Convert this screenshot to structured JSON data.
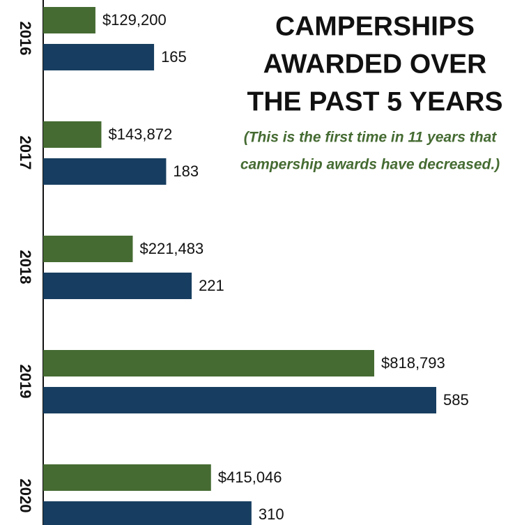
{
  "chart_data": {
    "type": "bar",
    "orientation": "horizontal",
    "title": [
      "CAMPERSHIPS",
      "AWARDED OVER",
      "THE PAST 5 YEARS"
    ],
    "subtitle": [
      "(This is the first time in 11 years that",
      "campership awards have decreased.)"
    ],
    "categories": [
      "2016",
      "2017",
      "2018",
      "2019",
      "2020"
    ],
    "series": [
      {
        "color": "#456b32",
        "values": [
          129200,
          143872,
          221483,
          818793,
          415046
        ],
        "value_labels": [
          "$129,200",
          "$143,872",
          "$221,483",
          "$818,793",
          "$415,046"
        ]
      },
      {
        "color": "#173e60",
        "values": [
          165,
          183,
          221,
          585,
          310
        ]
      }
    ]
  }
}
